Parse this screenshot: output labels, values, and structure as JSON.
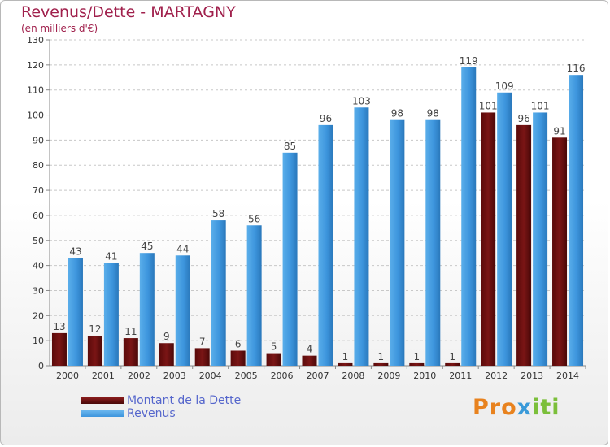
{
  "title": "Revenus/Dette - MARTAGNY",
  "subtitle": "(en milliers d'€)",
  "logo": {
    "text": "Proxiti",
    "part1": "Pro",
    "part2": "x",
    "part3": "iti"
  },
  "colors": {
    "title": "#a0204c",
    "dette": "#7a1515",
    "revenus": "#3d95dd",
    "legend_text": "#5566cc"
  },
  "legend": {
    "dette_label": "Montant de la Dette",
    "revenus_label": "Revenus"
  },
  "chart_data": {
    "type": "bar",
    "categories": [
      "2000",
      "2001",
      "2002",
      "2003",
      "2004",
      "2005",
      "2006",
      "2007",
      "2008",
      "2009",
      "2010",
      "2011",
      "2012",
      "2013",
      "2014"
    ],
    "series": [
      {
        "name": "Montant de la Dette",
        "values": [
          13,
          12,
          11,
          9,
          7,
          6,
          5,
          4,
          1,
          1,
          1,
          1,
          101,
          96,
          91
        ]
      },
      {
        "name": "Revenus",
        "values": [
          43,
          41,
          45,
          44,
          58,
          56,
          85,
          96,
          103,
          98,
          98,
          119,
          109,
          101,
          116
        ]
      }
    ],
    "ylim": [
      0,
      130
    ],
    "yticks": [
      0,
      10,
      20,
      30,
      40,
      50,
      60,
      70,
      80,
      90,
      100,
      110,
      120,
      130
    ],
    "grid": true,
    "legend_position": "bottom-left"
  }
}
